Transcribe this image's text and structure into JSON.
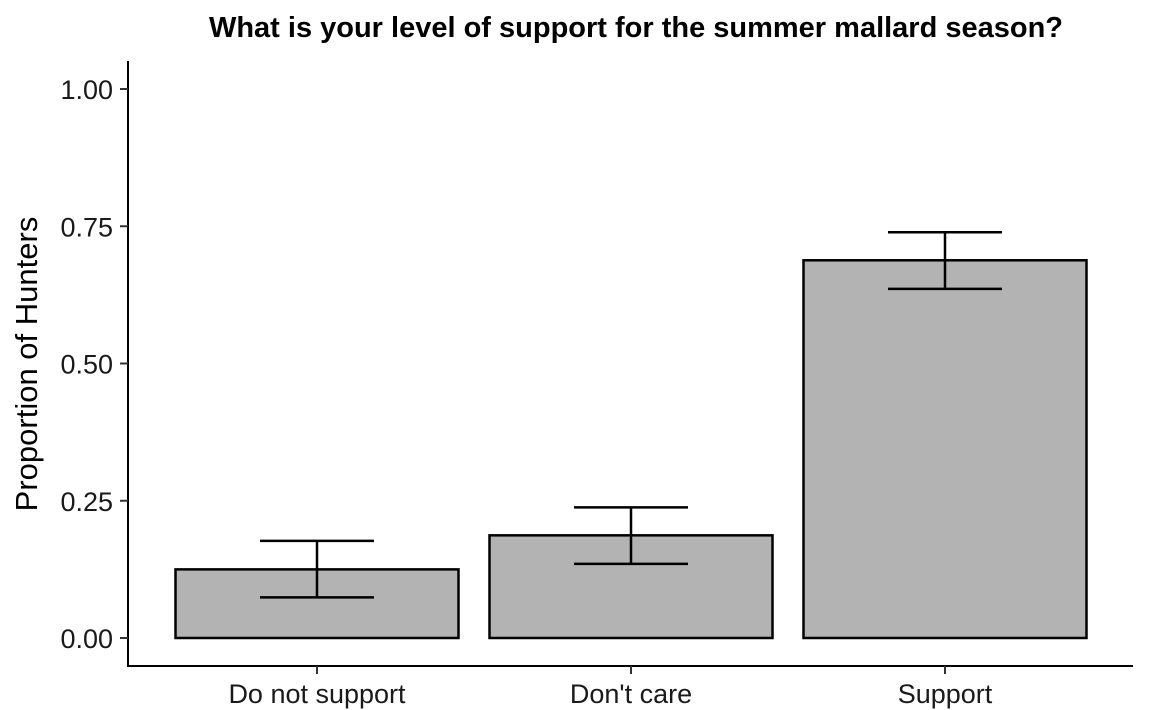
{
  "chart_data": {
    "type": "bar",
    "title": "What is your level of support for the summer mallard season?",
    "xlabel": "",
    "ylabel": "Proportion of Hunters",
    "categories": [
      "Do not support",
      "Don't care",
      "Support"
    ],
    "values": [
      0.125,
      0.187,
      0.688
    ],
    "error_lower": [
      0.074,
      0.135,
      0.636
    ],
    "error_upper": [
      0.177,
      0.238,
      0.739
    ],
    "ylim": [
      0,
      1
    ],
    "yticks": [
      0,
      0.25,
      0.5,
      0.75,
      1
    ],
    "ytick_labels": [
      "0.00",
      "0.25",
      "0.50",
      "0.75",
      "1.00"
    ],
    "grid": false,
    "legend": "none",
    "bar_color": "#b3b3b3",
    "bar_edge_color": "#000000"
  }
}
